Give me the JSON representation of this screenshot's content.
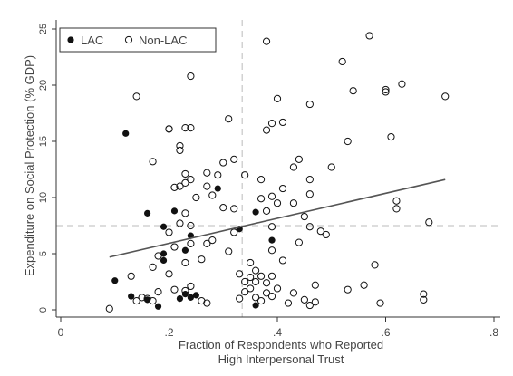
{
  "colors": {
    "background": "#ffffff",
    "axis": "#333333",
    "marker": "#111111",
    "ref_line": "#bbbbbb",
    "fit_line": "#555555",
    "text": "#444444"
  },
  "chart_data": {
    "type": "scatter",
    "title": "",
    "xlabel": [
      "Fraction of Respondents who Reported",
      "High Interpersonal Trust"
    ],
    "ylabel": "Expenditure on Social Protection (% GDP)",
    "xlim": [
      0,
      0.8
    ],
    "ylim": [
      0,
      25
    ],
    "x_ticks": [
      0,
      0.2,
      0.4,
      0.6,
      0.8
    ],
    "x_tick_labels": [
      "0",
      ".2",
      ".4",
      ".6",
      ".8"
    ],
    "y_ticks": [
      0,
      5,
      10,
      15,
      20,
      25
    ],
    "y_tick_labels": [
      "0",
      "5",
      "10",
      "15",
      "20",
      "25"
    ],
    "grid": false,
    "legend_position": "top-left",
    "reference_lines": {
      "x": 0.335,
      "y": 7.5
    },
    "fit_line": {
      "x": [
        0.09,
        0.71
      ],
      "y": [
        4.7,
        11.6
      ]
    },
    "series": [
      {
        "name": "LAC",
        "marker": "filled-circle",
        "points": [
          [
            0.12,
            15.7
          ],
          [
            0.16,
            8.6
          ],
          [
            0.19,
            7.4
          ],
          [
            0.21,
            8.8
          ],
          [
            0.24,
            6.6
          ],
          [
            0.29,
            10.8
          ],
          [
            0.36,
            8.7
          ],
          [
            0.33,
            7.2
          ],
          [
            0.39,
            6.2
          ],
          [
            0.23,
            5.3
          ],
          [
            0.19,
            5.0
          ],
          [
            0.19,
            4.4
          ],
          [
            0.1,
            2.6
          ],
          [
            0.13,
            1.2
          ],
          [
            0.16,
            0.9
          ],
          [
            0.18,
            0.3
          ],
          [
            0.22,
            1.0
          ],
          [
            0.23,
            1.4
          ],
          [
            0.24,
            1.1
          ],
          [
            0.25,
            1.3
          ],
          [
            0.36,
            0.4
          ]
        ]
      },
      {
        "name": "Non-LAC",
        "marker": "hollow-circle",
        "points": [
          [
            0.09,
            0.1
          ],
          [
            0.13,
            3.0
          ],
          [
            0.14,
            19.0
          ],
          [
            0.14,
            0.8
          ],
          [
            0.15,
            1.1
          ],
          [
            0.16,
            1.0
          ],
          [
            0.17,
            0.8
          ],
          [
            0.18,
            1.6
          ],
          [
            0.17,
            13.2
          ],
          [
            0.17,
            3.8
          ],
          [
            0.18,
            4.8
          ],
          [
            0.2,
            16.1
          ],
          [
            0.2,
            16.1
          ],
          [
            0.2,
            6.9
          ],
          [
            0.2,
            3.2
          ],
          [
            0.21,
            10.9
          ],
          [
            0.21,
            5.6
          ],
          [
            0.21,
            1.8
          ],
          [
            0.22,
            14.6
          ],
          [
            0.22,
            14.2
          ],
          [
            0.22,
            11.0
          ],
          [
            0.22,
            7.7
          ],
          [
            0.23,
            16.2
          ],
          [
            0.23,
            12.1
          ],
          [
            0.23,
            11.3
          ],
          [
            0.23,
            8.6
          ],
          [
            0.23,
            4.2
          ],
          [
            0.23,
            1.7
          ],
          [
            0.24,
            20.8
          ],
          [
            0.24,
            16.2
          ],
          [
            0.24,
            11.6
          ],
          [
            0.24,
            7.5
          ],
          [
            0.24,
            5.9
          ],
          [
            0.24,
            2.1
          ],
          [
            0.25,
            10.0
          ],
          [
            0.26,
            4.5
          ],
          [
            0.26,
            0.8
          ],
          [
            0.27,
            12.2
          ],
          [
            0.27,
            11.0
          ],
          [
            0.27,
            5.9
          ],
          [
            0.27,
            0.6
          ],
          [
            0.28,
            10.2
          ],
          [
            0.28,
            6.2
          ],
          [
            0.29,
            12.0
          ],
          [
            0.3,
            13.1
          ],
          [
            0.3,
            9.1
          ],
          [
            0.31,
            17.0
          ],
          [
            0.31,
            5.2
          ],
          [
            0.32,
            13.4
          ],
          [
            0.32,
            9.0
          ],
          [
            0.32,
            6.9
          ],
          [
            0.33,
            3.2
          ],
          [
            0.33,
            1.0
          ],
          [
            0.34,
            12.0
          ],
          [
            0.34,
            2.5
          ],
          [
            0.34,
            1.6
          ],
          [
            0.35,
            4.2
          ],
          [
            0.35,
            2.9
          ],
          [
            0.35,
            1.9
          ],
          [
            0.36,
            3.5
          ],
          [
            0.36,
            2.5
          ],
          [
            0.36,
            1.1
          ],
          [
            0.37,
            11.6
          ],
          [
            0.37,
            9.9
          ],
          [
            0.37,
            3.0
          ],
          [
            0.37,
            0.8
          ],
          [
            0.38,
            16.0
          ],
          [
            0.38,
            8.8
          ],
          [
            0.38,
            2.4
          ],
          [
            0.38,
            1.5
          ],
          [
            0.38,
            23.9
          ],
          [
            0.39,
            16.6
          ],
          [
            0.39,
            10.1
          ],
          [
            0.39,
            7.4
          ],
          [
            0.39,
            5.3
          ],
          [
            0.39,
            3.0
          ],
          [
            0.39,
            1.2
          ],
          [
            0.4,
            18.8
          ],
          [
            0.4,
            9.5
          ],
          [
            0.4,
            1.9
          ],
          [
            0.41,
            16.7
          ],
          [
            0.41,
            10.8
          ],
          [
            0.41,
            4.4
          ],
          [
            0.42,
            0.6
          ],
          [
            0.43,
            12.7
          ],
          [
            0.43,
            9.5
          ],
          [
            0.43,
            1.5
          ],
          [
            0.44,
            13.4
          ],
          [
            0.44,
            6.0
          ],
          [
            0.45,
            8.3
          ],
          [
            0.45,
            0.9
          ],
          [
            0.46,
            18.3
          ],
          [
            0.46,
            11.6
          ],
          [
            0.46,
            10.3
          ],
          [
            0.46,
            7.4
          ],
          [
            0.46,
            0.4
          ],
          [
            0.47,
            2.2
          ],
          [
            0.47,
            0.7
          ],
          [
            0.48,
            7.0
          ],
          [
            0.49,
            6.7
          ],
          [
            0.5,
            12.7
          ],
          [
            0.52,
            22.1
          ],
          [
            0.53,
            15.0
          ],
          [
            0.53,
            1.8
          ],
          [
            0.54,
            19.5
          ],
          [
            0.56,
            2.2
          ],
          [
            0.57,
            24.4
          ],
          [
            0.58,
            4.0
          ],
          [
            0.59,
            0.6
          ],
          [
            0.6,
            19.6
          ],
          [
            0.6,
            19.4
          ],
          [
            0.61,
            15.4
          ],
          [
            0.62,
            9.7
          ],
          [
            0.62,
            9.0
          ],
          [
            0.63,
            20.1
          ],
          [
            0.67,
            1.4
          ],
          [
            0.67,
            0.9
          ],
          [
            0.68,
            7.8
          ],
          [
            0.71,
            19.0
          ]
        ]
      }
    ]
  }
}
